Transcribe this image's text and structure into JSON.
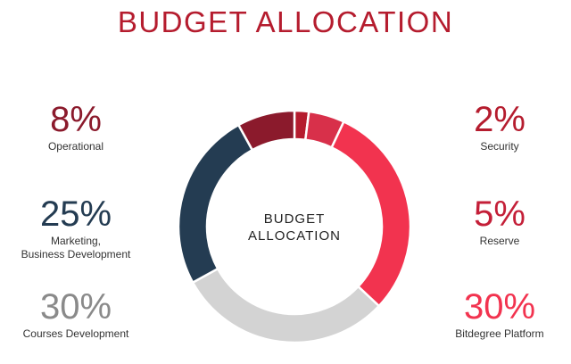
{
  "chart_data": {
    "type": "pie",
    "variant": "donut",
    "title": "BUDGET ALLOCATION",
    "center_label": [
      "BUDGET",
      "ALLOCATION"
    ],
    "slices": [
      {
        "label": "Security",
        "value": 2,
        "display": "2%",
        "color": "#b51c2e"
      },
      {
        "label": "Reserve",
        "value": 5,
        "display": "5%",
        "color": "#d8304a"
      },
      {
        "label": "Bitdegree Platform",
        "value": 30,
        "display": "30%",
        "color": "#f2334f"
      },
      {
        "label": "Courses Development",
        "value": 30,
        "display": "30%",
        "color": "#d3d3d3"
      },
      {
        "label": "Marketing,\nBusiness Development",
        "value": 25,
        "display": "25%",
        "color": "#243c52"
      },
      {
        "label": "Operational",
        "value": 8,
        "display": "8%",
        "color": "#8b1a2c"
      }
    ]
  },
  "labels": {
    "operational": {
      "pct": "8%",
      "text": "Operational"
    },
    "marketing": {
      "pct": "25%",
      "line1": "Marketing,",
      "line2": "Business Development"
    },
    "courses": {
      "pct": "30%",
      "text": "Courses Development"
    },
    "security": {
      "pct": "2%",
      "text": "Security"
    },
    "reserve": {
      "pct": "5%",
      "text": "Reserve"
    },
    "platform": {
      "pct": "30%",
      "text": "Bitdegree Platform"
    }
  }
}
